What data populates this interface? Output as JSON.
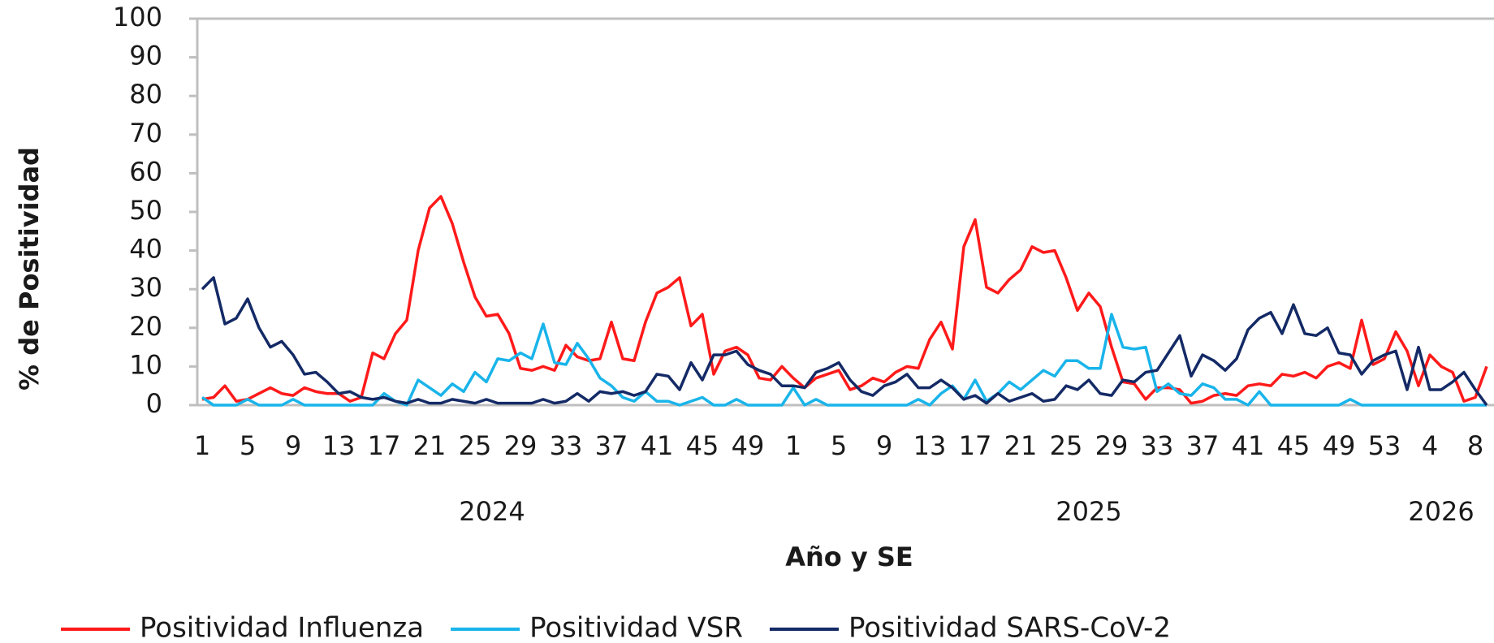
{
  "chart_data": {
    "type": "line",
    "y_label": "% de Positividad",
    "x_label": "Año y SE",
    "years": [
      "2024",
      "2025",
      "2026"
    ],
    "categories": [
      "1",
      null,
      null,
      null,
      "5",
      null,
      null,
      null,
      "9",
      null,
      null,
      null,
      "13",
      null,
      null,
      null,
      "17",
      null,
      null,
      null,
      "21",
      null,
      null,
      null,
      "25",
      null,
      null,
      null,
      "29",
      null,
      null,
      null,
      "33",
      null,
      null,
      null,
      "37",
      null,
      null,
      null,
      "41",
      null,
      null,
      null,
      "45",
      null,
      null,
      null,
      "49",
      null,
      null,
      null,
      "1",
      null,
      null,
      null,
      "5",
      null,
      null,
      null,
      "9",
      null,
      null,
      null,
      "13",
      null,
      null,
      null,
      "17",
      null,
      null,
      null,
      "21",
      null,
      null,
      null,
      "25",
      null,
      null,
      null,
      "29",
      null,
      null,
      null,
      "33",
      null,
      null,
      null,
      "37",
      null,
      null,
      null,
      "41",
      null,
      null,
      null,
      "45",
      null,
      null,
      null,
      "49",
      null,
      null,
      null,
      "53",
      null,
      null,
      null,
      "4",
      null,
      null,
      null,
      "8",
      null
    ],
    "series": [
      {
        "name": "Positividad Influenza",
        "color": "#ff1a1a",
        "values": [
          1.5,
          2,
          5,
          1,
          1.5,
          3,
          4.5,
          3,
          2.5,
          4.5,
          3.5,
          3,
          3,
          1,
          2,
          13.5,
          12,
          18.5,
          22,
          40,
          51,
          54,
          47,
          37,
          28,
          23,
          23.5,
          18.5,
          9.5,
          9,
          10,
          9,
          15.5,
          12.5,
          11.5,
          12,
          21.5,
          12,
          11.5,
          21.5,
          29,
          30.5,
          33,
          20.5,
          23.5,
          8,
          14,
          15,
          13,
          7,
          6.5,
          10,
          7,
          4.5,
          7,
          8,
          9,
          4,
          5,
          7,
          6,
          8.5,
          10,
          9.5,
          17,
          21.5,
          14.5,
          41,
          48,
          30.5,
          29,
          32.5,
          35,
          41,
          39.5,
          40,
          33,
          24.5,
          29,
          25.5,
          15,
          6,
          5.5,
          1.5,
          4.5,
          4.5,
          4,
          0.5,
          1,
          2.5,
          3,
          2.5,
          5,
          5.5,
          5,
          8,
          7.5,
          8.5,
          7,
          10,
          11,
          9.5,
          22,
          10.5,
          12,
          19,
          14,
          5,
          13,
          10,
          8.5,
          1,
          2,
          10
        ]
      },
      {
        "name": "Positividad VSR",
        "color": "#19b4ea",
        "values": [
          2,
          0,
          0,
          0,
          1.5,
          0,
          0,
          0,
          1.5,
          0,
          0,
          0,
          0,
          0,
          0,
          0,
          3,
          1,
          0,
          6.5,
          4.5,
          2.5,
          5.5,
          3.5,
          8.5,
          6,
          12,
          11.5,
          13.5,
          12,
          21,
          11,
          10.5,
          16,
          12,
          7,
          5,
          2,
          1,
          3.5,
          1,
          1,
          0,
          1,
          2,
          0,
          0,
          1.5,
          0,
          0,
          0,
          0,
          4.5,
          0,
          1.5,
          0,
          0,
          0,
          0,
          0,
          0,
          0,
          0,
          1.5,
          0,
          3,
          5,
          1.5,
          6.5,
          1,
          3,
          6,
          4,
          6.5,
          9,
          7.5,
          11.5,
          11.5,
          9.5,
          9.5,
          23.5,
          15,
          14.5,
          15,
          3.5,
          5.5,
          3,
          2.5,
          5.5,
          4.5,
          1.5,
          1.5,
          0,
          3.5,
          0,
          0,
          0,
          0,
          0,
          0,
          0,
          1.5,
          0,
          0,
          0,
          0,
          0,
          0,
          0,
          0,
          0,
          0,
          0,
          0
        ]
      },
      {
        "name": "Positividad SARS-CoV-2",
        "color": "#142a66",
        "values": [
          30,
          33,
          21,
          22.5,
          27.5,
          20,
          15,
          16.5,
          13,
          8,
          8.5,
          6,
          3,
          3.5,
          2,
          1.5,
          2,
          1,
          0.5,
          1.5,
          0.5,
          0.5,
          1.5,
          1,
          0.5,
          1.5,
          0.5,
          0.5,
          0.5,
          0.5,
          1.5,
          0.5,
          1,
          3,
          1,
          3.5,
          3,
          3.5,
          2.5,
          3.5,
          8,
          7.5,
          4,
          11,
          6.5,
          13,
          13,
          14,
          10.5,
          9,
          8,
          5,
          5,
          4.5,
          8.5,
          9.5,
          11,
          6.5,
          3.5,
          2.5,
          5,
          6,
          8,
          4.5,
          4.5,
          6.5,
          4.5,
          1.5,
          2.5,
          0.5,
          3,
          1,
          2,
          3,
          1,
          1.5,
          5,
          4,
          6.5,
          3,
          2.5,
          6.5,
          6,
          8.5,
          9,
          13.5,
          18,
          7.5,
          13,
          11.5,
          9,
          12,
          19.5,
          22.5,
          24,
          18.5,
          26,
          18.5,
          18,
          20,
          13.5,
          13,
          8,
          11.5,
          13,
          14,
          4,
          15,
          4,
          4,
          6,
          8.5,
          4,
          0
        ]
      }
    ],
    "ylim": [
      0,
      100
    ],
    "yticks": [
      0,
      10,
      20,
      30,
      40,
      50,
      60,
      70,
      80,
      90,
      100
    ],
    "grid": false,
    "legend": "bottom"
  }
}
